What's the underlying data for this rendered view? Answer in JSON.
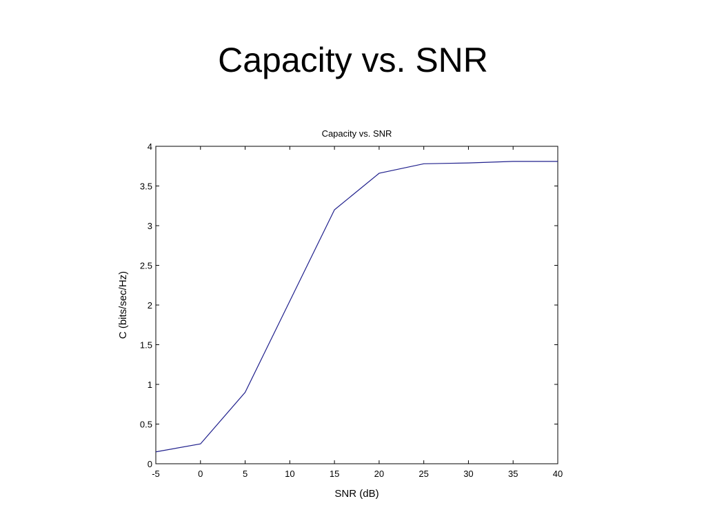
{
  "slide": {
    "title": "Capacity vs. SNR"
  },
  "chart_data": {
    "type": "line",
    "title": "Capacity vs. SNR",
    "xlabel": "SNR (dB)",
    "ylabel": "C (bits/sec/Hz)",
    "xlim": [
      -5,
      40
    ],
    "ylim": [
      0,
      4
    ],
    "xticks": [
      -5,
      0,
      5,
      10,
      15,
      20,
      25,
      30,
      35,
      40
    ],
    "yticks": [
      0,
      0.5,
      1,
      1.5,
      2,
      2.5,
      3,
      3.5,
      4
    ],
    "xtick_labels": [
      "-5",
      "0",
      "5",
      "10",
      "15",
      "20",
      "25",
      "30",
      "35",
      "40"
    ],
    "ytick_labels": [
      "0",
      "0.5",
      "1",
      "1.5",
      "2",
      "2.5",
      "3",
      "3.5",
      "4"
    ],
    "grid": false,
    "line_color": "#1f1f8c",
    "series": [
      {
        "x": [
          -5,
          0,
          5,
          10,
          15,
          20,
          25,
          30,
          35,
          40
        ],
        "values": [
          0.15,
          0.25,
          0.9,
          2.05,
          3.2,
          3.66,
          3.78,
          3.79,
          3.81,
          3.81
        ]
      }
    ]
  }
}
